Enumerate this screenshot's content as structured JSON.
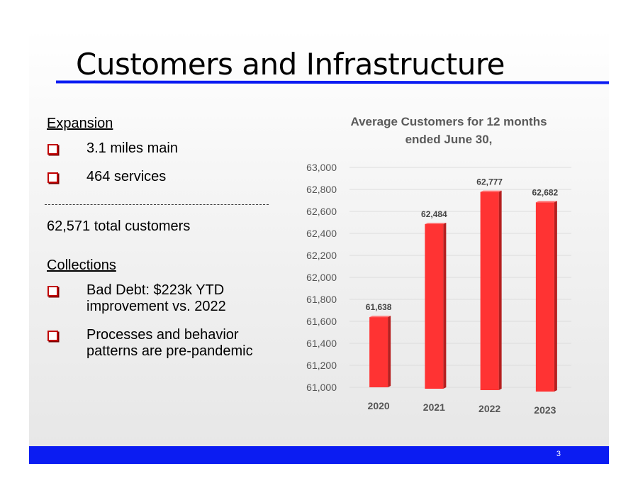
{
  "slide": {
    "title": "Customers and Infrastructure",
    "page_number": "3"
  },
  "left": {
    "expansion": {
      "heading": "Expansion",
      "items": [
        "3.1 miles main",
        "464 services"
      ]
    },
    "total_customers": "62,571 total customers",
    "collections": {
      "heading": "Collections",
      "items": [
        [
          "Bad Debt: $223k YTD",
          "improvement vs. 2022"
        ],
        [
          "Processes and behavior",
          "patterns are pre-pandemic"
        ]
      ]
    }
  },
  "colors": {
    "accent": "#0b1cf2",
    "bar": "#ff3333",
    "bullet_box": "#c00000"
  },
  "chart_data": {
    "type": "bar",
    "title_lines": [
      "Average Customers for 12 months",
      "ended June 30,"
    ],
    "categories": [
      "2020",
      "2021",
      "2022",
      "2023"
    ],
    "values": [
      61638,
      62484,
      62777,
      62682
    ],
    "value_labels": [
      "61,638",
      "62,484",
      "62,777",
      "62,682"
    ],
    "ylim": [
      61000,
      63000
    ],
    "yticks": [
      61000,
      61200,
      61400,
      61600,
      61800,
      62000,
      62200,
      62400,
      62600,
      62800,
      63000
    ],
    "ytick_labels": [
      "61,000",
      "61,200",
      "61,400",
      "61,600",
      "61,800",
      "62,000",
      "62,200",
      "62,400",
      "62,600",
      "62,800",
      "63,000"
    ],
    "xlabel": "",
    "ylabel": "",
    "grid": true
  }
}
